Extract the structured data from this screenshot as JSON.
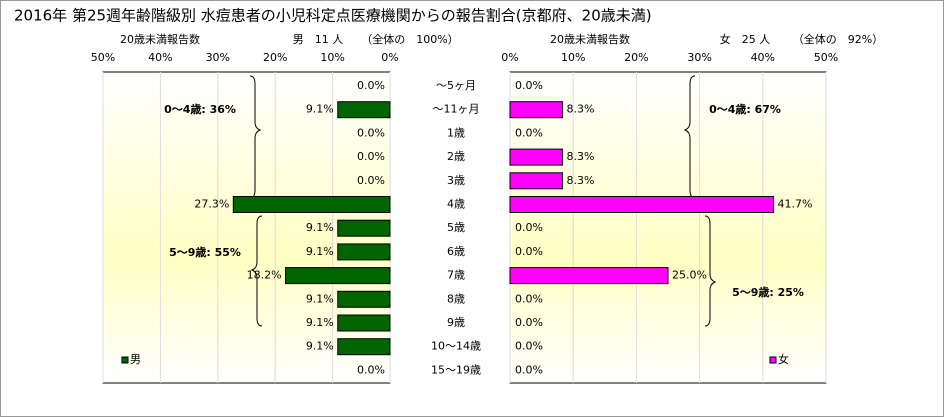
{
  "title": "2016年 第25週年齢階級別 水痘患者の小児科定点医療機関からの報告割合(京都府、20歳未満)",
  "categories": [
    "～5ヶ月",
    "～11ヶ月",
    "1歳",
    "2歳",
    "3歳",
    "4歳",
    "5歳",
    "6歳",
    "7歳",
    "8歳",
    "9歳",
    "10～14歳",
    "15～19歳"
  ],
  "chart_data": [
    {
      "type": "barh",
      "x_reversed": true,
      "axis_label": "20歳未満報告数",
      "count_label": "男　11 人",
      "share_label": "（全体の　100%）",
      "xlim": [
        0,
        50
      ],
      "xticks": [
        {
          "value": 0,
          "label": "0%"
        },
        {
          "value": 10,
          "label": "10%"
        },
        {
          "value": 20,
          "label": "20%"
        },
        {
          "value": 30,
          "label": "30%"
        },
        {
          "value": 40,
          "label": "40%"
        },
        {
          "value": 50,
          "label": "50%"
        }
      ],
      "grid": true,
      "legend": "lower left",
      "series": [
        {
          "name": "男",
          "color": "#006400",
          "values": [
            0,
            9.1,
            0,
            0,
            0,
            27.3,
            9.1,
            9.1,
            18.2,
            9.1,
            9.1,
            9.1,
            0
          ],
          "value_labels": [
            "0.0%",
            "9.1%",
            "0.0%",
            "0.0%",
            "0.0%",
            "27.3%",
            "9.1%",
            "9.1%",
            "18.2%",
            "9.1%",
            "9.1%",
            "9.1%",
            "0.0%"
          ]
        }
      ],
      "annotations": [
        "0～4歳: 36%",
        "5～9歳: 55%"
      ]
    },
    {
      "type": "barh",
      "x_reversed": false,
      "axis_label": "20歳未満報告数",
      "count_label": "女　25 人",
      "share_label": "（全体の　92%）",
      "xlim": [
        0,
        50
      ],
      "xticks": [
        {
          "value": 0,
          "label": "0%"
        },
        {
          "value": 10,
          "label": "10%"
        },
        {
          "value": 20,
          "label": "20%"
        },
        {
          "value": 30,
          "label": "30%"
        },
        {
          "value": 40,
          "label": "40%"
        },
        {
          "value": 50,
          "label": "50%"
        }
      ],
      "grid": true,
      "legend": "lower right",
      "series": [
        {
          "name": "女",
          "color": "#ff00ff",
          "values": [
            0,
            8.3,
            0,
            8.3,
            8.3,
            41.7,
            0,
            0,
            25.0,
            0,
            0,
            0,
            0
          ],
          "value_labels": [
            "0.0%",
            "8.3%",
            "0.0%",
            "8.3%",
            "8.3%",
            "41.7%",
            "0.0%",
            "0.0%",
            "25.0%",
            "0.0%",
            "0.0%",
            "0.0%",
            "0.0%"
          ]
        }
      ],
      "annotations": [
        "0～4歳: 67%",
        "5～9歳: 25%"
      ]
    }
  ]
}
